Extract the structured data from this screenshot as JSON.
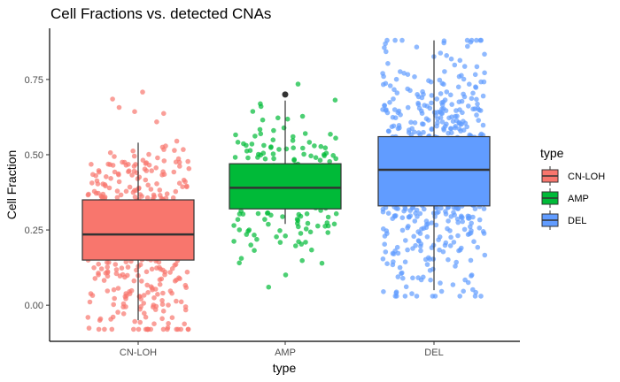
{
  "chart_data": {
    "type": "box",
    "title": "Cell Fractions vs. detected CNAs",
    "xlabel": "type",
    "ylabel": "Cell Fraction",
    "categories": [
      "CN-LOH",
      "AMP",
      "DEL"
    ],
    "ylim": [
      -0.12,
      0.92
    ],
    "yticks": [
      0.0,
      0.25,
      0.5,
      0.75
    ],
    "ytick_labels": [
      "0.00",
      "0.25",
      "0.50",
      "0.75"
    ],
    "grid": false,
    "legend": {
      "title": "type",
      "position": "right"
    },
    "series": [
      {
        "name": "CN-LOH",
        "color": "#F8766D",
        "points_shown": 450,
        "box": {
          "whisker_low": -0.05,
          "q1": 0.15,
          "median": 0.235,
          "q3": 0.35,
          "whisker_high": 0.54
        },
        "outliers": [],
        "jitter_range": [
          -0.08,
          0.72
        ]
      },
      {
        "name": "AMP",
        "color": "#00BA38",
        "points_shown": 190,
        "box": {
          "whisker_low": 0.27,
          "q1": 0.32,
          "median": 0.39,
          "q3": 0.47,
          "whisker_high": 0.68
        },
        "outliers": [
          0.7
        ],
        "jitter_range": [
          0.06,
          0.86
        ]
      },
      {
        "name": "DEL",
        "color": "#619CFF",
        "points_shown": 650,
        "box": {
          "whisker_low": 0.05,
          "q1": 0.33,
          "median": 0.45,
          "q3": 0.56,
          "whisker_high": 0.88
        },
        "outliers": [],
        "jitter_range": [
          0.03,
          0.88
        ]
      }
    ]
  }
}
